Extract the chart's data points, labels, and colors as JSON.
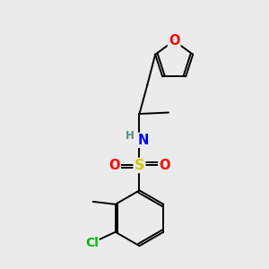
{
  "bg_color": "#ebebeb",
  "atom_colors": {
    "O": "#ff0000",
    "N": "#0000ff",
    "S": "#cccc00",
    "Cl": "#00bb00",
    "C": "#000000",
    "H": "#5a8a8a"
  },
  "figsize": [
    3.0,
    3.0
  ],
  "dpi": 100,
  "lw": 1.4,
  "fs": 9.5
}
